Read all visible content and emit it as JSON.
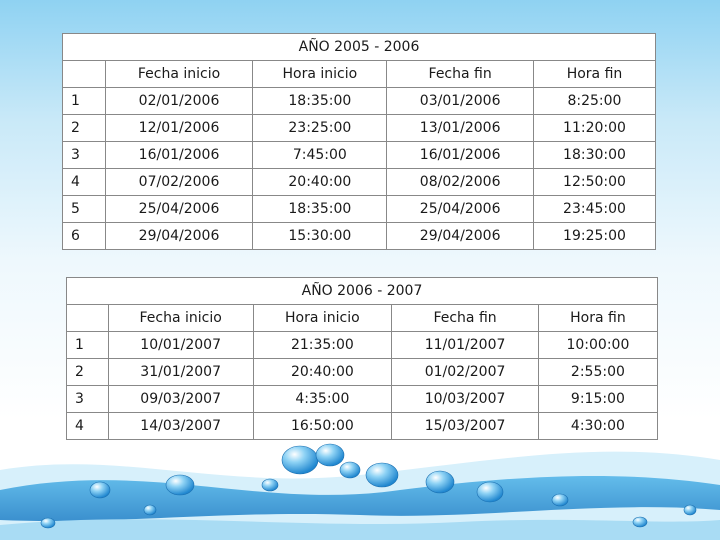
{
  "tables": [
    {
      "title": "AÑO 2005 - 2006",
      "header": [
        "Fecha inicio",
        "Hora inicio",
        "Fecha fin",
        "Hora fin"
      ],
      "rows": [
        [
          "1",
          "02/01/2006",
          "18:35:00",
          "03/01/2006",
          "8:25:00"
        ],
        [
          "2",
          "12/01/2006",
          "23:25:00",
          "13/01/2006",
          "11:20:00"
        ],
        [
          "3",
          "16/01/2006",
          "7:45:00",
          "16/01/2006",
          "18:30:00"
        ],
        [
          "4",
          "07/02/2006",
          "20:40:00",
          "08/02/2006",
          "12:50:00"
        ],
        [
          "5",
          "25/04/2006",
          "18:35:00",
          "25/04/2006",
          "23:45:00"
        ],
        [
          "6",
          "29/04/2006",
          "15:30:00",
          "29/04/2006",
          "19:25:00"
        ]
      ]
    },
    {
      "title": "AÑO 2006 - 2007",
      "header": [
        "Fecha inicio",
        "Hora inicio",
        "Fecha fin",
        "Hora fin"
      ],
      "rows": [
        [
          "1",
          "10/01/2007",
          "21:35:00",
          "11/01/2007",
          "10:00:00"
        ],
        [
          "2",
          "31/01/2007",
          "20:40:00",
          "01/02/2007",
          "2:55:00"
        ],
        [
          "3",
          "09/03/2007",
          "4:35:00",
          "10/03/2007",
          "9:15:00"
        ],
        [
          "4",
          "14/03/2007",
          "16:50:00",
          "15/03/2007",
          "4:30:00"
        ]
      ]
    }
  ]
}
